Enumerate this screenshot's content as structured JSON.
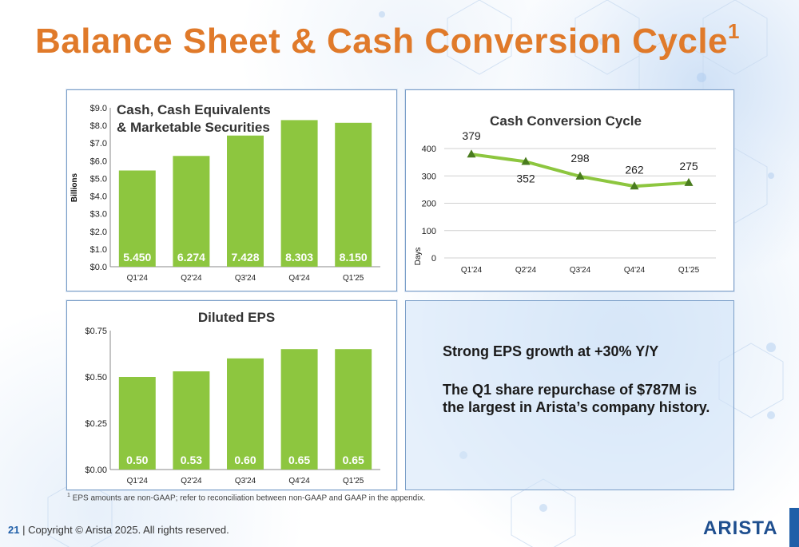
{
  "slide": {
    "title": "Balance Sheet & Cash Conversion Cycle",
    "title_superscript": "1",
    "colors": {
      "title": "#E07A2A",
      "bar": "#8DC63F",
      "line": "#8DC63F",
      "marker": "#4a7c1f",
      "brand": "#1f4f8f"
    },
    "text_panel": {
      "line1": "Strong EPS growth at +30% Y/Y",
      "line2": "The Q1 share repurchase of $787M is the largest in Arista’s company history."
    },
    "footnote_mark": "1",
    "footnote": "EPS amounts are non-GAAP; refer to reconciliation between non-GAAP and GAAP in the appendix.",
    "page_number": "21",
    "separator": "|",
    "copyright": "Copyright © Arista 2025. All rights reserved.",
    "logo": "ARISTA"
  },
  "chart_data": [
    {
      "type": "bar",
      "title": "Cash, Cash Equivalents & Marketable Securities",
      "title_lines": [
        "Cash, Cash Equivalents",
        "& Marketable Securities"
      ],
      "ylabel": "Billions",
      "categories": [
        "Q1'24",
        "Q2'24",
        "Q3'24",
        "Q4'24",
        "Q1'25"
      ],
      "values": [
        5.45,
        6.274,
        7.428,
        8.303,
        8.15
      ],
      "value_labels": [
        "5.450",
        "6.274",
        "7.428",
        "8.303",
        "8.150"
      ],
      "yticks": [
        "$0.0",
        "$1.0",
        "$2.0",
        "$3.0",
        "$4.0",
        "$5.0",
        "$6.0",
        "$7.0",
        "$8.0",
        "$9.0"
      ],
      "ylim": [
        0,
        9
      ],
      "grid": false
    },
    {
      "type": "line",
      "title": "Cash Conversion Cycle",
      "ylabel": "Days",
      "categories": [
        "Q1'24",
        "Q2'24",
        "Q3'24",
        "Q4'24",
        "Q1'25"
      ],
      "values": [
        379,
        352,
        298,
        262,
        275
      ],
      "value_labels": [
        "379",
        "352",
        "298",
        "262",
        "275"
      ],
      "yticks": [
        "0",
        "100",
        "200",
        "300",
        "400"
      ],
      "ylim": [
        0,
        400
      ],
      "grid": true
    },
    {
      "type": "bar",
      "title": "Diluted EPS",
      "categories": [
        "Q1'24",
        "Q2'24",
        "Q3'24",
        "Q4'24",
        "Q1'25"
      ],
      "values": [
        0.5,
        0.53,
        0.6,
        0.65,
        0.65
      ],
      "value_labels": [
        "0.50",
        "0.53",
        "0.60",
        "0.65",
        "0.65"
      ],
      "yticks": [
        "$0.00",
        "$0.25",
        "$0.50",
        "$0.75"
      ],
      "ylim": [
        0,
        0.75
      ],
      "grid": false
    }
  ]
}
